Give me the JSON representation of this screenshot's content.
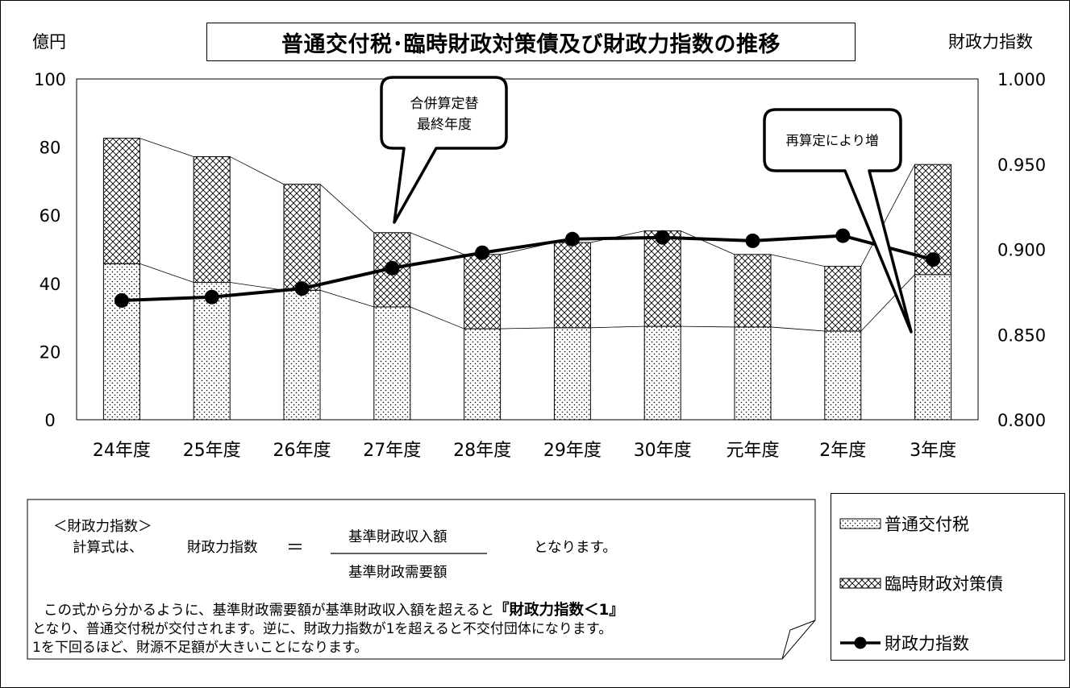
{
  "chart_data": {
    "type": "bar",
    "title": "普通交付税･臨時財政対策債及び財政力指数の推移",
    "y_left_label": "億円",
    "y_right_label": "財政力指数",
    "y_left_lim": [
      0,
      100
    ],
    "y_left_ticks": [
      "0",
      "20",
      "40",
      "60",
      "80",
      "100"
    ],
    "y_right_lim": [
      0.8,
      1.0
    ],
    "y_right_ticks": [
      "0.800",
      "0.850",
      "0.900",
      "0.950",
      "1.000"
    ],
    "categories": [
      "24年度",
      "25年度",
      "26年度",
      "27年度",
      "28年度",
      "29年度",
      "30年度",
      "元年度",
      "2年度",
      "3年度"
    ],
    "series": [
      {
        "name": "普通交付税",
        "type": "stacked-bar",
        "values": [
          45.8,
          40.3,
          38.0,
          33.1,
          26.7,
          27.0,
          27.4,
          27.2,
          26.0,
          42.6
        ]
      },
      {
        "name": "臨時財政対策債",
        "type": "stacked-bar",
        "values": [
          36.8,
          36.9,
          31.1,
          21.8,
          21.8,
          25.0,
          28.0,
          21.3,
          19.0,
          32.3
        ]
      },
      {
        "name": "財政力指数",
        "type": "line",
        "axis": "right",
        "values": [
          0.87,
          0.872,
          0.877,
          0.889,
          0.898,
          0.906,
          0.907,
          0.905,
          0.908,
          0.894
        ]
      }
    ],
    "grid": false,
    "legend_position": "bottom-right",
    "annotations": [
      {
        "lines": [
          "合併算定替",
          "最終年度"
        ],
        "target_category": "27年度"
      },
      {
        "lines": [
          "再算定により増"
        ],
        "target_category": "3年度"
      }
    ]
  },
  "formula": {
    "heading": "＜財政力指数＞",
    "intro": "計算式は、",
    "lhs": "財政力指数",
    "equals": "＝",
    "numerator": "基準財政収入額",
    "denominator": "基準財政需要額",
    "suffix": "となります。",
    "line1": "この式から分かるように、基準財政需要額が基準財政収入額を超えると",
    "line1_bold": "『財政力指数＜1』",
    "line2": "となり、普通交付税が交付されます。逆に、財政力指数が1を超えると不交付団体になります。",
    "line3": "1を下回るほど、財源不足額が大きいことになります。"
  },
  "colors": {
    "line": "#000000",
    "bar_fill": "#ffffff",
    "pattern": "#000000"
  }
}
